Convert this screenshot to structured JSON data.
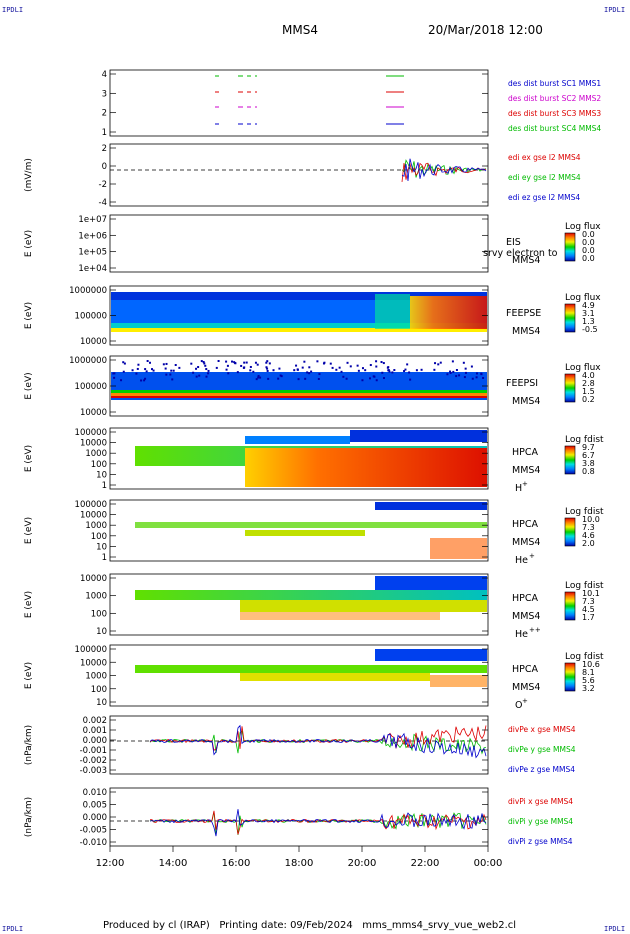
{
  "corner_label": "IPDLI",
  "header": {
    "mission": "MMS4",
    "datetime": "20/Mar/2018 12:00"
  },
  "footer": {
    "text": "Produced by cl (IRAP)   Printing date: 09/Feb/2024   mms_mms4_srvy_vue_web2.cl"
  },
  "chart_data": {
    "type": "multi-panel time series",
    "x_ticks": [
      "12:00",
      "14:00",
      "16:00",
      "18:00",
      "20:00",
      "22:00",
      "00:00"
    ],
    "panels": [
      {
        "id": "burst",
        "ylabel": "",
        "yticks": [
          "4",
          "3",
          "2",
          "1"
        ],
        "legend": [
          {
            "text": "des dist burst SC1 MMS1",
            "color": "#0000cc"
          },
          {
            "text": "des dist burst SC2 MMS2",
            "color": "#cc00cc"
          },
          {
            "text": "des dist burst SC3 MMS3",
            "color": "#dd0000"
          },
          {
            "text": "des dist burst SC4 MMS4",
            "color": "#00bb00"
          }
        ]
      },
      {
        "id": "edi",
        "ylabel": "(mV/m)",
        "yticks": [
          "2",
          "0",
          "-2",
          "-4"
        ],
        "legend": [
          {
            "text": "edi ex gse l2 MMS4",
            "color": "#dd0000"
          },
          {
            "text": "edi ey gse l2 MMS4",
            "color": "#00bb00"
          },
          {
            "text": "edi ez gse l2 MMS4",
            "color": "#0000cc"
          }
        ]
      },
      {
        "id": "eis",
        "ylabel": "E (eV)",
        "yticks": [
          "1e+07",
          "1e+06",
          "1e+05",
          "1e+04"
        ],
        "label": "EIS",
        "sublabel": "MMS4",
        "overlay": "srvy electron to",
        "cbar_title": "Log flux",
        "cbar_ticks": [
          "0.0",
          "0.0",
          "0.0",
          "0.0"
        ]
      },
      {
        "id": "feepse",
        "ylabel": "E (eV)",
        "yticks": [
          "1000000",
          "100000",
          "10000"
        ],
        "label": "FEEPSE",
        "sublabel": "MMS4",
        "cbar_title": "Log flux",
        "cbar_ticks": [
          "4.9",
          "3.1",
          "1.3",
          "-0.5"
        ]
      },
      {
        "id": "feepsi",
        "ylabel": "E (eV)",
        "yticks": [
          "1000000",
          "100000",
          "10000"
        ],
        "label": "FEEPSI",
        "sublabel": "MMS4",
        "cbar_title": "Log flux",
        "cbar_ticks": [
          "4.0",
          "2.8",
          "1.5",
          "0.2"
        ]
      },
      {
        "id": "hpca_h",
        "ylabel": "E (eV)",
        "yticks": [
          "100000",
          "10000",
          "1000",
          "100",
          "10",
          "1"
        ],
        "label": "HPCA",
        "sublabel": "MMS4",
        "species": "H",
        "charge": "+",
        "cbar_title": "Log fdist",
        "cbar_ticks": [
          "9.7",
          "6.7",
          "3.8",
          "0.8"
        ]
      },
      {
        "id": "hpca_he1",
        "ylabel": "E (eV)",
        "yticks": [
          "100000",
          "10000",
          "1000",
          "100",
          "10",
          "1"
        ],
        "label": "HPCA",
        "sublabel": "MMS4",
        "species": "He",
        "charge": "+",
        "cbar_title": "Log fdist",
        "cbar_ticks": [
          "10.0",
          "7.3",
          "4.6",
          "2.0"
        ]
      },
      {
        "id": "hpca_he2",
        "ylabel": "E (eV)",
        "yticks": [
          "10000",
          "1000",
          "100",
          "10"
        ],
        "label": "HPCA",
        "sublabel": "MMS4",
        "species": "He",
        "charge": "++",
        "cbar_title": "Log fdist",
        "cbar_ticks": [
          "10.1",
          "7.3",
          "4.5",
          "1.7"
        ]
      },
      {
        "id": "hpca_o",
        "ylabel": "E (eV)",
        "yticks": [
          "100000",
          "10000",
          "1000",
          "100",
          "10"
        ],
        "label": "HPCA",
        "sublabel": "MMS4",
        "species": "O",
        "charge": "+",
        "cbar_title": "Log fdist",
        "cbar_ticks": [
          "10.6",
          "8.1",
          "5.6",
          "3.2"
        ]
      },
      {
        "id": "divpe",
        "ylabel": "(nPa/km)",
        "yticks": [
          "0.002",
          "0.001",
          "0.000",
          "-0.001",
          "-0.002",
          "-0.003"
        ],
        "legend": [
          {
            "text": "divPe x gse MMS4",
            "color": "#dd0000"
          },
          {
            "text": "divPe y gse MMS4",
            "color": "#00bb00"
          },
          {
            "text": "divPe z gse MMS4",
            "color": "#0000cc"
          }
        ]
      },
      {
        "id": "divpi",
        "ylabel": "(nPa/km)",
        "yticks": [
          "0.010",
          "0.005",
          "0.000",
          "-0.005",
          "-0.010"
        ],
        "legend": [
          {
            "text": "divPi x gse MMS4",
            "color": "#dd0000"
          },
          {
            "text": "divPi y gse MMS4",
            "color": "#00bb00"
          },
          {
            "text": "divPi z gse MMS4",
            "color": "#0000cc"
          }
        ]
      }
    ]
  }
}
